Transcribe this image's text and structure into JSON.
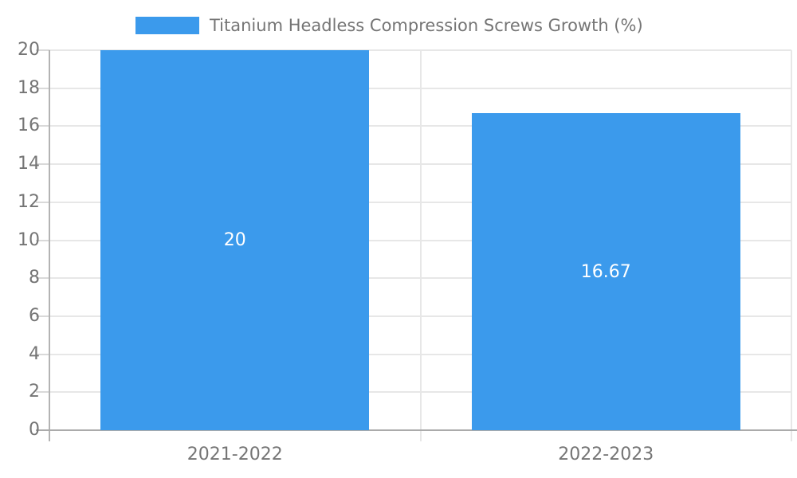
{
  "legend": {
    "label": "Titanium Headless Compression Screws Growth (%)"
  },
  "chart_data": {
    "type": "bar",
    "title": "",
    "xlabel": "",
    "ylabel": "",
    "categories": [
      "2021-2022",
      "2022-2023"
    ],
    "series": [
      {
        "name": "Titanium Headless Compression Screws Growth (%)",
        "values": [
          20,
          16.67
        ]
      }
    ],
    "value_labels": [
      "20",
      "16.67"
    ],
    "ylim": [
      0,
      20
    ],
    "ytick_step": 2,
    "ytick_labels": [
      "0",
      "2",
      "4",
      "6",
      "8",
      "10",
      "12",
      "14",
      "16",
      "18",
      "20"
    ],
    "grid": true,
    "legend_position": "top",
    "colors": {
      "bar": "#3b9aec",
      "axis_text": "#757575",
      "gridline": "#e7e7e7",
      "axis_line": "#b0b0b0",
      "bar_label": "#ffffff"
    }
  }
}
